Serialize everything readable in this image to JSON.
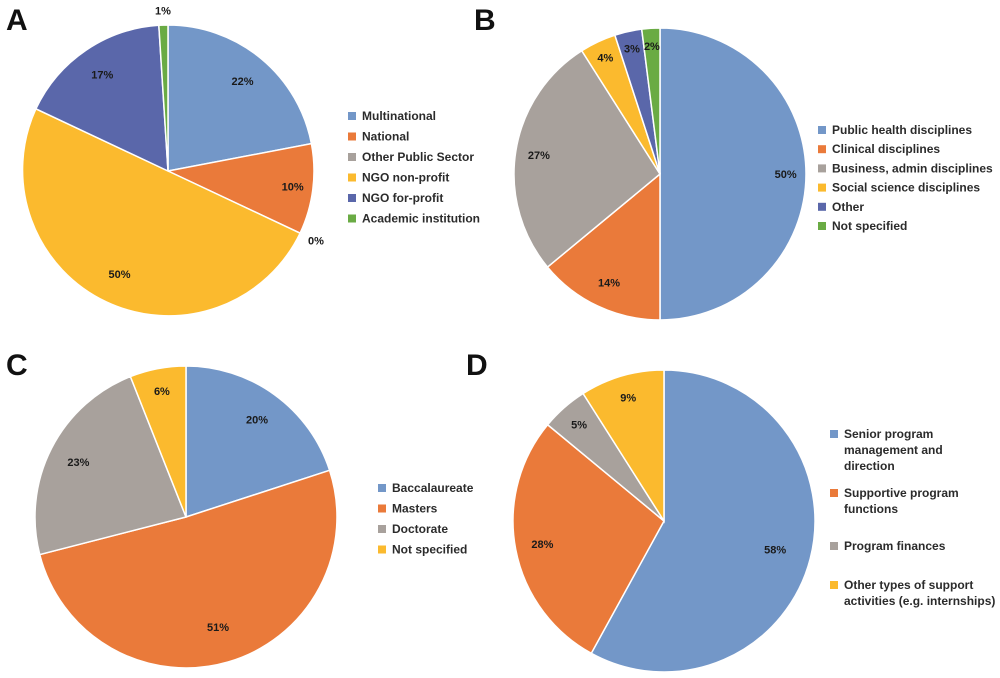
{
  "colors": {
    "blue": "#7397c8",
    "orange": "#ea7a3a",
    "gray": "#a8a19c",
    "yellow": "#fbba2e",
    "indigo": "#5a67aa",
    "green": "#6aab44"
  },
  "chart_data": [
    {
      "type": "pie",
      "panel": "A",
      "categories": [
        "Multinational",
        "National",
        "Other Public Sector",
        "NGO non-profit",
        "NGO for-profit",
        "Academic institution"
      ],
      "values": [
        22,
        10,
        0,
        50,
        17,
        1
      ],
      "value_labels": [
        "22%",
        "10%",
        "0%",
        "50%",
        "17%",
        "1%"
      ],
      "colors": [
        "#7397c8",
        "#ea7a3a",
        "#a8a19c",
        "#fbba2e",
        "#5a67aa",
        "#6aab44"
      ],
      "legend": [
        "Multinational",
        "National",
        "Other Public Sector",
        "NGO non-profit",
        "NGO for-profit",
        "Academic institution"
      ],
      "legend_position": "right"
    },
    {
      "type": "pie",
      "panel": "B",
      "categories": [
        "Public health disciplines",
        "Clinical disciplines",
        "Business, admin disciplines",
        "Social science disciplines",
        "Other",
        "Not specified"
      ],
      "values": [
        50,
        14,
        27,
        4,
        3,
        2
      ],
      "value_labels": [
        "50%",
        "14%",
        "27%",
        "4%",
        "3%",
        "2%"
      ],
      "colors": [
        "#7397c8",
        "#ea7a3a",
        "#a8a19c",
        "#fbba2e",
        "#5a67aa",
        "#6aab44"
      ],
      "legend": [
        "Public health disciplines",
        "Clinical disciplines",
        "Business, admin disciplines",
        "Social science disciplines",
        "Other",
        "Not specified"
      ],
      "legend_position": "right"
    },
    {
      "type": "pie",
      "panel": "C",
      "categories": [
        "Baccalaureate",
        "Masters",
        "Doctorate",
        "Not specified"
      ],
      "values": [
        20,
        51,
        23,
        6
      ],
      "value_labels": [
        "20%",
        "51%",
        "23%",
        "6%"
      ],
      "colors": [
        "#7397c8",
        "#ea7a3a",
        "#a8a19c",
        "#fbba2e"
      ],
      "legend": [
        "Baccalaureate",
        "Masters",
        "Doctorate",
        "Not specified"
      ],
      "legend_position": "right"
    },
    {
      "type": "pie",
      "panel": "D",
      "categories": [
        "Senior program management and direction",
        "Supportive program functions",
        "Program finances",
        "Other types of support activities (e.g. internships)"
      ],
      "values": [
        58,
        28,
        5,
        9
      ],
      "value_labels": [
        "58%",
        "28%",
        "5%",
        "9%"
      ],
      "colors": [
        "#7397c8",
        "#ea7a3a",
        "#a8a19c",
        "#fbba2e"
      ],
      "legend": [
        [
          "Senior program",
          "management and",
          "direction"
        ],
        [
          "Supportive program",
          "functions"
        ],
        [
          "Program finances"
        ],
        [
          "Other types of support",
          "activities (e.g. internships)"
        ]
      ],
      "legend_position": "right"
    }
  ]
}
